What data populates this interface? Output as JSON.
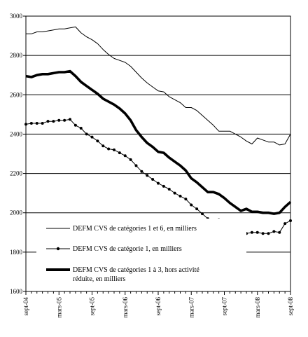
{
  "chart_data": {
    "type": "line",
    "title": "",
    "xlabel": "",
    "ylabel": "",
    "ylim": [
      1600,
      3000
    ],
    "yticks": [
      "1600",
      "1800",
      "2000",
      "2200",
      "2400",
      "2600",
      "2800",
      "3000"
    ],
    "xticks": [
      "sept-04",
      "mars-05",
      "sept-05",
      "mars-06",
      "sept-06",
      "mars-07",
      "sept-07",
      "mars-08",
      "sept-08"
    ],
    "x": [
      0,
      1,
      2,
      3,
      4,
      5,
      6,
      7,
      8,
      9,
      10,
      11,
      12,
      13,
      14,
      15,
      16,
      17,
      18,
      19,
      20,
      21,
      22,
      23,
      24,
      25,
      26,
      27,
      28,
      29,
      30,
      31,
      32,
      33,
      34,
      35,
      36,
      37,
      38,
      39,
      40,
      41,
      42,
      43,
      44,
      45,
      46,
      47,
      48
    ],
    "grid": "horizontal",
    "legend_position": "bottom-center inside plot",
    "series": [
      {
        "name": "DEFM CVS de catégories 1 et 6, en milliers",
        "style": "thin",
        "color": "#000000",
        "values": [
          2910,
          2910,
          2920,
          2920,
          2925,
          2930,
          2935,
          2935,
          2940,
          2945,
          2915,
          2895,
          2880,
          2860,
          2830,
          2805,
          2785,
          2775,
          2765,
          2745,
          2715,
          2685,
          2660,
          2640,
          2620,
          2615,
          2590,
          2575,
          2560,
          2535,
          2535,
          2520,
          2495,
          2470,
          2445,
          2415,
          2415,
          2415,
          2400,
          2385,
          2365,
          2350,
          2380,
          2370,
          2360,
          2360,
          2345,
          2350,
          2400
        ]
      },
      {
        "name": "DEFM CVS de catégorie 1, en milliers",
        "style": "dots",
        "color": "#000000",
        "values": [
          2450,
          2455,
          2455,
          2455,
          2465,
          2465,
          2470,
          2470,
          2475,
          2445,
          2430,
          2400,
          2385,
          2365,
          2340,
          2325,
          2320,
          2305,
          2290,
          2270,
          2240,
          2210,
          2190,
          2170,
          2150,
          2135,
          2120,
          2100,
          2085,
          2070,
          2040,
          2020,
          1995,
          1970,
          1960,
          1965,
          1940,
          1920,
          1910,
          1905,
          1895,
          1900,
          1900,
          1895,
          1895,
          1905,
          1900,
          1945,
          1960
        ]
      },
      {
        "name": "DEFM CVS de catégories 1 à 3, hors activité réduite, en milliers",
        "style": "thick",
        "color": "#000000",
        "values": [
          2695,
          2690,
          2700,
          2705,
          2705,
          2710,
          2715,
          2715,
          2720,
          2695,
          2665,
          2645,
          2625,
          2605,
          2580,
          2565,
          2550,
          2530,
          2505,
          2470,
          2420,
          2385,
          2355,
          2335,
          2310,
          2305,
          2280,
          2260,
          2240,
          2215,
          2175,
          2155,
          2130,
          2105,
          2105,
          2095,
          2075,
          2050,
          2030,
          2010,
          2020,
          2005,
          2005,
          2000,
          2000,
          1995,
          2000,
          2030,
          2055
        ]
      }
    ]
  }
}
